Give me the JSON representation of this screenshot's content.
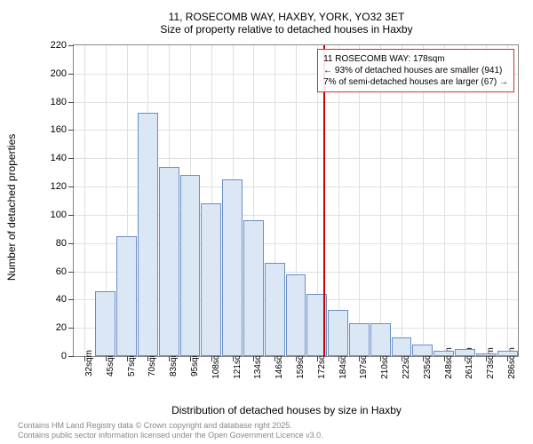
{
  "title_line1": "11, ROSECOMB WAY, HAXBY, YORK, YO32 3ET",
  "title_line2": "Size of property relative to detached houses in Haxby",
  "y_axis": {
    "title": "Number of detached properties",
    "min": 0,
    "max": 220,
    "step": 20
  },
  "x_axis": {
    "title": "Distribution of detached houses by size in Haxby",
    "labels": [
      "32sqm",
      "45sqm",
      "57sqm",
      "70sqm",
      "83sqm",
      "95sqm",
      "108sqm",
      "121sqm",
      "134sqm",
      "146sqm",
      "159sqm",
      "172sqm",
      "184sqm",
      "197sqm",
      "210sqm",
      "222sqm",
      "235sqm",
      "248sqm",
      "261sqm",
      "273sqm",
      "286sqm"
    ]
  },
  "bars": {
    "values": [
      0,
      46,
      85,
      172,
      134,
      128,
      108,
      125,
      96,
      66,
      58,
      44,
      33,
      23,
      23,
      13,
      8,
      4,
      5,
      2,
      4
    ],
    "fill": "#dbe7f5",
    "stroke": "#6a8fc5"
  },
  "marker": {
    "sqm": 178,
    "color": "#cc0000"
  },
  "annotation": {
    "line1": "11 ROSECOMB WAY: 178sqm",
    "line2": "← 93% of detached houses are smaller (941)",
    "line3": "7% of semi-detached houses are larger (67) →",
    "border": "#cc3333"
  },
  "footer": {
    "line1": "Contains HM Land Registry data © Crown copyright and database right 2025.",
    "line2": "Contains public sector information licensed under the Open Government Licence v3.0."
  },
  "plot": {
    "grid_color": "#e0e0e0",
    "border_color": "#888888",
    "bg": "#ffffff"
  }
}
